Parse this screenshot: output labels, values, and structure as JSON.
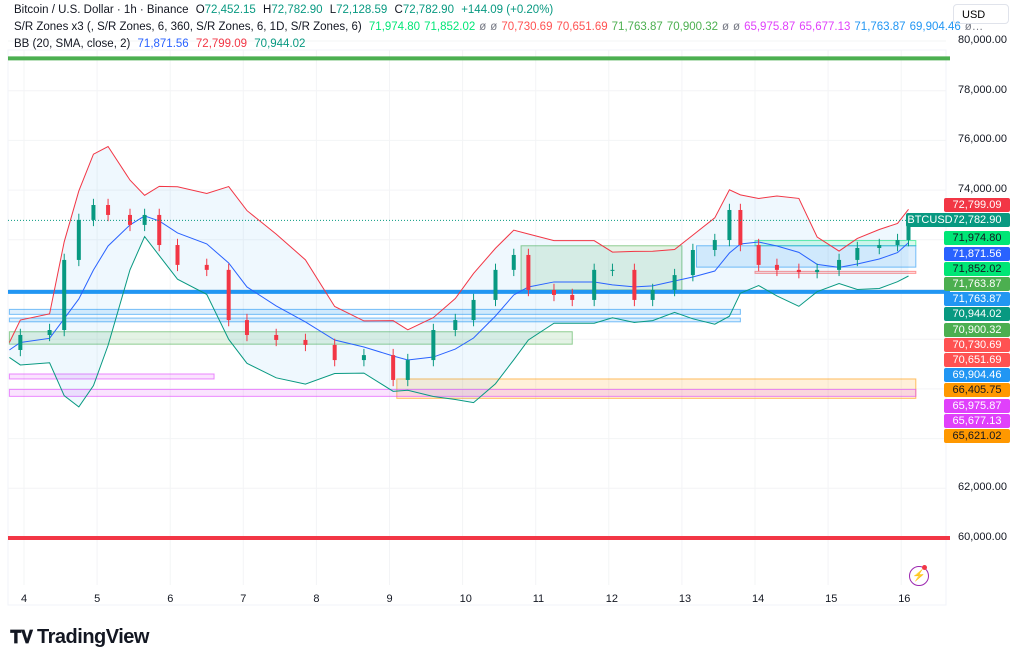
{
  "header": {
    "symbol_line": {
      "title": "Bitcoin / U.S. Dollar · 1h · Binance",
      "open_label": "O",
      "open": "72,452.15",
      "high_label": "H",
      "high": "72,782.90",
      "low_label": "L",
      "low": "72,128.59",
      "close_label": "C",
      "close": "72,782.90",
      "change": "+144.09 (+0.20%)"
    },
    "sr_line": {
      "title": "S/R Zones x3 (, S/R Zones, 6, 360, S/R Zones, 6, 1D, S/R Zones, 6)",
      "values": [
        {
          "text": "71,974.80",
          "color": "#00e676"
        },
        {
          "text": "71,852.02",
          "color": "#00e676"
        },
        {
          "text": "ø",
          "color": "#787b86"
        },
        {
          "text": "ø",
          "color": "#787b86"
        },
        {
          "text": "70,730.69",
          "color": "#ff5252"
        },
        {
          "text": "70,651.69",
          "color": "#ff5252"
        },
        {
          "text": "71,763.87",
          "color": "#4caf50"
        },
        {
          "text": "70,900.32",
          "color": "#4caf50"
        },
        {
          "text": "ø",
          "color": "#787b86"
        },
        {
          "text": "ø",
          "color": "#787b86"
        },
        {
          "text": "65,975.87",
          "color": "#e040fb"
        },
        {
          "text": "65,677.13",
          "color": "#e040fb"
        },
        {
          "text": "71,763.87",
          "color": "#2196f3"
        },
        {
          "text": "69,904.46",
          "color": "#2196f3"
        },
        {
          "text": "ø…",
          "color": "#787b86"
        }
      ]
    },
    "bb_line": {
      "title": "BB (20, SMA, close, 2)",
      "basis": "71,871.56",
      "upper": "72,799.09",
      "lower": "70,944.02"
    },
    "currency": "USD"
  },
  "price_labels": [
    {
      "text": "72,799.09",
      "bg": "#f23645",
      "fg": "#ffffff",
      "price": 72799.09
    },
    {
      "text": "72,782.90",
      "bg": "#089981",
      "fg": "#ffffff",
      "price": 72782.9
    },
    {
      "text": "71,974.80",
      "bg": "#00e676",
      "fg": "#131722",
      "price": 71974.8
    },
    {
      "text": "71,871.56",
      "bg": "#2962ff",
      "fg": "#ffffff",
      "price": 71871.56
    },
    {
      "text": "71,852.02",
      "bg": "#00e676",
      "fg": "#131722",
      "price": 71852.02
    },
    {
      "text": "71,763.87",
      "bg": "#4caf50",
      "fg": "#ffffff",
      "price": 71763.87
    },
    {
      "text": "71,763.87",
      "bg": "#2196f3",
      "fg": "#ffffff",
      "price": 71763.87
    },
    {
      "text": "70,944.02",
      "bg": "#089981",
      "fg": "#ffffff",
      "price": 70944.02
    },
    {
      "text": "70,900.32",
      "bg": "#4caf50",
      "fg": "#ffffff",
      "price": 70900.32
    },
    {
      "text": "70,730.69",
      "bg": "#ff5252",
      "fg": "#ffffff",
      "price": 70730.69
    },
    {
      "text": "70,651.69",
      "bg": "#ff5252",
      "fg": "#ffffff",
      "price": 70651.69
    },
    {
      "text": "69,904.46",
      "bg": "#2196f3",
      "fg": "#ffffff",
      "price": 69904.46
    },
    {
      "text": "66,405.75",
      "bg": "#ff9800",
      "fg": "#131722",
      "price": 66405.75
    },
    {
      "text": "65,975.87",
      "bg": "#e040fb",
      "fg": "#ffffff",
      "price": 65975.87
    },
    {
      "text": "65,677.13",
      "bg": "#e040fb",
      "fg": "#ffffff",
      "price": 65677.13
    },
    {
      "text": "65,621.02",
      "bg": "#ff9800",
      "fg": "#131722",
      "price": 65621.02
    }
  ],
  "symbol_tag": "BTCUSD",
  "brand": "TradingView",
  "chart_data": {
    "type": "candlestick",
    "y_ticks": [
      "80,000.00",
      "78,000.00",
      "76,000.00",
      "74,000.00",
      "62,000.00",
      "60,000.00"
    ],
    "y_tick_values": [
      80000,
      78000,
      76000,
      74000,
      62000,
      60000
    ],
    "x_ticks": [
      "4",
      "5",
      "6",
      "7",
      "8",
      "9",
      "10",
      "11",
      "12",
      "13",
      "14",
      "15",
      "16"
    ],
    "ylim": [
      60000,
      80000
    ],
    "xlim": [
      3.8,
      17.2
    ],
    "grid": true,
    "colors": {
      "up": "#089981",
      "down": "#f23645",
      "bb_basis": "#2962ff",
      "bb_upper": "#f23645",
      "bb_lower": "#089981"
    },
    "x": [
      3.8,
      3.95,
      4.35,
      4.55,
      4.75,
      4.95,
      5.15,
      5.45,
      5.65,
      5.85,
      6.1,
      6.5,
      6.8,
      7.05,
      7.45,
      7.85,
      8.25,
      8.65,
      9.05,
      9.25,
      9.6,
      9.9,
      10.15,
      10.45,
      10.7,
      10.9,
      11.25,
      11.5,
      11.8,
      12.05,
      12.35,
      12.6,
      12.9,
      13.15,
      13.45,
      13.65,
      13.8,
      14.05,
      14.3,
      14.6,
      14.85,
      15.15,
      15.4,
      15.7,
      15.95,
      16.1
    ],
    "close": [
      67566,
      68170,
      68370,
      71190,
      72800,
      73400,
      73000,
      72600,
      73000,
      71790,
      70990,
      70790,
      68770,
      68170,
      67970,
      67770,
      67160,
      67360,
      66360,
      67160,
      68370,
      68770,
      69580,
      70790,
      71390,
      69980,
      69780,
      69580,
      70790,
      70790,
      69580,
      69980,
      70580,
      71590,
      71990,
      73200,
      71790,
      70990,
      70790,
      70700,
      70790,
      71190,
      71670,
      71790,
      71990,
      72783
    ],
    "horizontal_lines": [
      {
        "price": 79300,
        "color": "#4caf50"
      },
      {
        "price": 69904.46,
        "color": "#2196f3"
      },
      {
        "price": 60000,
        "color": "#f23645"
      }
    ],
    "zones": [
      {
        "low": 68700,
        "high": 68850,
        "from": 3.8,
        "to": 13.8,
        "color": "#2196f3"
      },
      {
        "low": 67800,
        "high": 68300,
        "from": 3.8,
        "to": 11.5,
        "color": "#4caf50"
      },
      {
        "low": 69000,
        "high": 69200,
        "from": 3.8,
        "to": 13.8,
        "color": "#2196f3"
      },
      {
        "low": 66400,
        "high": 66600,
        "from": 3.8,
        "to": 6.6,
        "color": "#e040fb"
      },
      {
        "low": 65620,
        "high": 66400,
        "from": 9.1,
        "to": 16.2,
        "color": "#ff9800"
      },
      {
        "low": 65700,
        "high": 65980,
        "from": 3.8,
        "to": 16.2,
        "color": "#e040fb"
      },
      {
        "low": 71760,
        "high": 71970,
        "from": 14.0,
        "to": 16.2,
        "color": "#00e676"
      },
      {
        "low": 70650,
        "high": 70730,
        "from": 14.0,
        "to": 16.2,
        "color": "#ff5252"
      },
      {
        "low": 69980,
        "high": 71760,
        "from": 10.8,
        "to": 13.0,
        "color": "#4caf50"
      },
      {
        "low": 70900,
        "high": 71760,
        "from": 13.2,
        "to": 16.2,
        "color": "#2196f3"
      }
    ]
  }
}
